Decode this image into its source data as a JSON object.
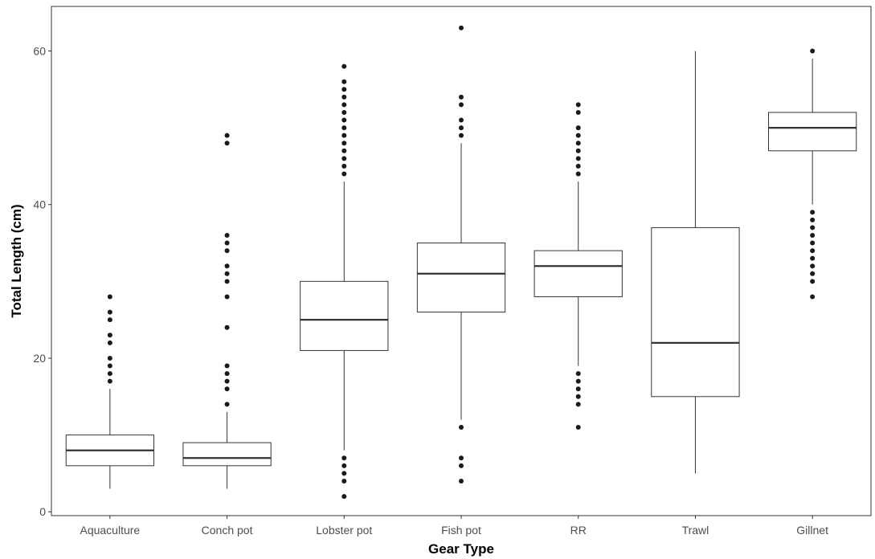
{
  "chart_data": {
    "type": "box",
    "title": "",
    "xlabel": "Gear Type",
    "ylabel": "Total Length (cm)",
    "ylim": [
      -0.5,
      65.8
    ],
    "yticks": [
      0,
      20,
      40,
      60
    ],
    "grid": false,
    "legend": "none",
    "categories": [
      "Aquaculture",
      "Conch pot",
      "Lobster pot",
      "Fish pot",
      "RR",
      "Trawl",
      "Gillnet"
    ],
    "boxes": [
      {
        "whisker_low": 3,
        "q1": 6,
        "median": 8,
        "q3": 10,
        "whisker_high": 16,
        "outliers": [
          17,
          18,
          19,
          20,
          22,
          23,
          25,
          26,
          28
        ]
      },
      {
        "whisker_low": 3,
        "q1": 6,
        "median": 7,
        "q3": 9,
        "whisker_high": 13,
        "outliers": [
          14,
          16,
          17,
          18,
          19,
          24,
          28,
          30,
          31,
          32,
          34,
          35,
          36,
          48,
          49
        ]
      },
      {
        "whisker_low": 8,
        "q1": 21,
        "median": 25,
        "q3": 30,
        "whisker_high": 43,
        "outliers": [
          2,
          4,
          5,
          6,
          7,
          44,
          45,
          46,
          47,
          48,
          49,
          50,
          51,
          52,
          53,
          54,
          55,
          56,
          58
        ]
      },
      {
        "whisker_low": 12,
        "q1": 26,
        "median": 31,
        "q3": 35,
        "whisker_high": 48,
        "outliers": [
          4,
          6,
          7,
          11,
          49,
          50,
          51,
          53,
          54,
          63
        ]
      },
      {
        "whisker_low": 19,
        "q1": 28,
        "median": 32,
        "q3": 34,
        "whisker_high": 43,
        "outliers": [
          11,
          14,
          15,
          16,
          17,
          18,
          44,
          45,
          46,
          47,
          48,
          49,
          50,
          52,
          53
        ]
      },
      {
        "whisker_low": 5,
        "q1": 15,
        "median": 22,
        "q3": 37,
        "whisker_high": 60,
        "outliers": []
      },
      {
        "whisker_low": 40,
        "q1": 47,
        "median": 50,
        "q3": 52,
        "whisker_high": 59,
        "outliers": [
          28,
          30,
          31,
          32,
          33,
          34,
          35,
          36,
          37,
          38,
          39,
          60
        ]
      }
    ],
    "colors": {
      "box_fill": "#ffffff",
      "stroke": "#333333",
      "point": "#1a1a1a",
      "panel_border": "#333333"
    }
  }
}
